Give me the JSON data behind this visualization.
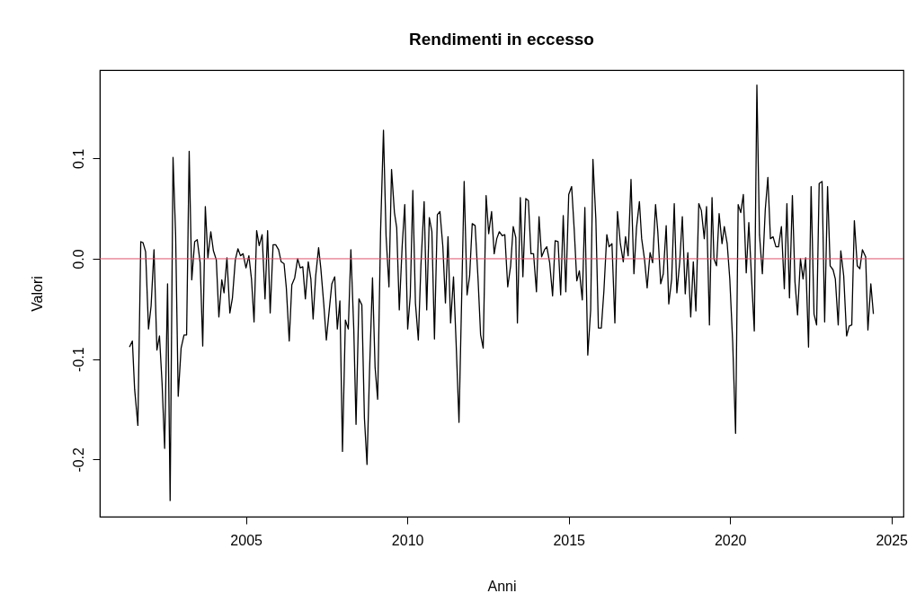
{
  "chart_data": {
    "type": "line",
    "title": "Rendimenti in eccesso",
    "xlabel": "Anni",
    "ylabel": "Valori",
    "x": [
      2001.39,
      2001.48,
      2001.55,
      2001.65,
      2001.74,
      2001.81,
      2001.89,
      2001.98,
      2002.06,
      2002.15,
      2002.24,
      2002.32,
      2002.4,
      2002.48,
      2002.57,
      2002.65,
      2002.74,
      2002.82,
      2002.9,
      2002.99,
      2003.08,
      2003.16,
      2003.24,
      2003.32,
      2003.41,
      2003.49,
      2003.58,
      2003.66,
      2003.74,
      2003.82,
      2003.91,
      2003.99,
      2004.08,
      2004.16,
      2004.25,
      2004.32,
      2004.41,
      2004.5,
      2004.58,
      2004.67,
      2004.75,
      2004.83,
      2004.91,
      2005.0,
      2005.09,
      2005.17,
      2005.25,
      2005.33,
      2005.41,
      2005.5,
      2005.59,
      2005.67,
      2005.75,
      2005.84,
      2005.92,
      2006.01,
      2006.09,
      2006.18,
      2006.25,
      2006.34,
      2006.42,
      2006.51,
      2006.6,
      2006.68,
      2006.76,
      2006.84,
      2006.93,
      2007.01,
      2007.08,
      2007.16,
      2007.25,
      2007.32,
      2007.41,
      2007.49,
      2007.58,
      2007.66,
      2007.75,
      2007.83,
      2007.91,
      2007.99,
      2008.08,
      2008.17,
      2008.25,
      2008.34,
      2008.41,
      2008.5,
      2008.59,
      2008.67,
      2008.75,
      2008.83,
      2008.92,
      2009.0,
      2009.08,
      2009.17,
      2009.26,
      2009.34,
      2009.43,
      2009.51,
      2009.6,
      2009.67,
      2009.75,
      2009.84,
      2009.92,
      2010.01,
      2010.09,
      2010.17,
      2010.25,
      2010.34,
      2010.42,
      2010.52,
      2010.6,
      2010.68,
      2010.76,
      2010.84,
      2010.93,
      2011.01,
      2011.1,
      2011.18,
      2011.26,
      2011.34,
      2011.43,
      2011.51,
      2011.6,
      2011.76,
      2011.85,
      2011.93,
      2012.01,
      2012.1,
      2012.19,
      2012.27,
      2012.35,
      2012.44,
      2012.52,
      2012.61,
      2012.69,
      2012.77,
      2012.85,
      2012.94,
      2013.02,
      2013.11,
      2013.2,
      2013.28,
      2013.36,
      2013.41,
      2013.5,
      2013.58,
      2013.67,
      2013.75,
      2013.83,
      2013.91,
      2014.0,
      2014.08,
      2014.16,
      2014.25,
      2014.32,
      2014.41,
      2014.5,
      2014.58,
      2014.67,
      2014.75,
      2014.83,
      2014.91,
      2015.0,
      2015.09,
      2015.17,
      2015.25,
      2015.33,
      2015.42,
      2015.5,
      2015.59,
      2015.68,
      2015.75,
      2015.84,
      2015.92,
      2016.01,
      2016.09,
      2016.18,
      2016.25,
      2016.34,
      2016.43,
      2016.51,
      2016.6,
      2016.69,
      2016.76,
      2016.84,
      2016.93,
      2017.02,
      2017.1,
      2017.19,
      2017.26,
      2017.35,
      2017.43,
      2017.52,
      2017.6,
      2017.69,
      2017.76,
      2017.85,
      2017.93,
      2018.02,
      2018.1,
      2018.19,
      2018.27,
      2018.35,
      2018.44,
      2018.52,
      2018.61,
      2018.69,
      2018.78,
      2018.86,
      2018.94,
      2019.03,
      2019.11,
      2019.2,
      2019.27,
      2019.36,
      2019.44,
      2019.5,
      2019.58,
      2019.66,
      2019.75,
      2019.82,
      2019.91,
      2019.99,
      2020.08,
      2020.17,
      2020.25,
      2020.33,
      2020.41,
      2020.5,
      2020.58,
      2020.67,
      2020.75,
      2020.83,
      2020.91,
      2021.0,
      2021.09,
      2021.17,
      2021.25,
      2021.33,
      2021.42,
      2021.5,
      2021.59,
      2021.68,
      2021.76,
      2021.84,
      2021.93,
      2022.01,
      2022.09,
      2022.18,
      2022.26,
      2022.34,
      2022.43,
      2022.51,
      2022.6,
      2022.68,
      2022.76,
      2022.85,
      2022.93,
      2023.02,
      2023.1,
      2023.19,
      2023.26,
      2023.35,
      2023.43,
      2023.52,
      2023.61,
      2023.69,
      2023.77,
      2023.85,
      2023.94,
      2024.02,
      2024.1,
      2024.2,
      2024.27,
      2024.36,
      2024.44
    ],
    "series": [
      {
        "color": "#000000",
        "values": [
          -0.088,
          -0.082,
          -0.13,
          -0.166,
          0.017,
          0.016,
          0.007,
          -0.07,
          -0.047,
          0.009,
          -0.091,
          -0.077,
          -0.124,
          -0.189,
          -0.025,
          -0.241,
          0.101,
          0.024,
          -0.137,
          -0.089,
          -0.076,
          -0.076,
          0.107,
          -0.021,
          0.017,
          0.019,
          -0.004,
          -0.087,
          0.052,
          0.001,
          0.027,
          0.008,
          -0.001,
          -0.058,
          -0.021,
          -0.034,
          0.001,
          -0.054,
          -0.039,
          -0.001,
          0.01,
          0.003,
          0.005,
          -0.009,
          0.003,
          -0.02,
          -0.063,
          0.028,
          0.013,
          0.024,
          -0.04,
          0.028,
          -0.054,
          0.014,
          0.014,
          0.009,
          -0.003,
          -0.005,
          -0.029,
          -0.082,
          -0.026,
          -0.019,
          0.0,
          -0.009,
          -0.008,
          -0.04,
          -0.003,
          -0.02,
          -0.06,
          -0.017,
          0.011,
          -0.01,
          -0.045,
          -0.081,
          -0.051,
          -0.025,
          -0.018,
          -0.07,
          -0.042,
          -0.192,
          -0.061,
          -0.07,
          0.009,
          -0.07,
          -0.165,
          -0.04,
          -0.046,
          -0.159,
          -0.205,
          -0.11,
          -0.019,
          -0.108,
          -0.14,
          0.027,
          0.128,
          0.023,
          -0.028,
          0.089,
          0.046,
          0.031,
          -0.051,
          0.013,
          0.054,
          -0.07,
          -0.037,
          0.068,
          -0.044,
          -0.081,
          -0.007,
          0.057,
          -0.051,
          0.041,
          0.027,
          -0.08,
          0.044,
          0.047,
          0.012,
          -0.044,
          0.022,
          -0.064,
          -0.018,
          -0.083,
          -0.163,
          0.077,
          -0.036,
          -0.017,
          0.035,
          0.033,
          -0.02,
          -0.076,
          -0.089,
          0.063,
          0.025,
          0.047,
          0.005,
          0.02,
          0.027,
          0.023,
          0.024,
          -0.028,
          -0.007,
          0.032,
          0.021,
          -0.064,
          0.061,
          -0.018,
          0.06,
          0.058,
          0.005,
          0.005,
          -0.033,
          0.042,
          0.002,
          0.009,
          0.012,
          -0.004,
          -0.037,
          0.018,
          0.017,
          -0.036,
          0.043,
          -0.033,
          0.064,
          0.072,
          0.029,
          -0.022,
          -0.012,
          -0.041,
          0.051,
          -0.096,
          -0.051,
          0.099,
          0.04,
          -0.069,
          -0.069,
          -0.032,
          0.024,
          0.012,
          0.015,
          -0.064,
          0.047,
          0.015,
          -0.003,
          0.022,
          0.003,
          0.079,
          -0.015,
          0.031,
          0.057,
          0.02,
          -0.001,
          -0.029,
          0.006,
          -0.004,
          0.054,
          0.027,
          -0.025,
          -0.015,
          0.033,
          -0.045,
          -0.02,
          0.055,
          -0.034,
          -0.003,
          0.042,
          -0.035,
          0.006,
          -0.058,
          -0.003,
          -0.052,
          0.055,
          0.048,
          0.02,
          0.052,
          -0.066,
          0.061,
          0.0,
          -0.007,
          0.045,
          0.015,
          0.032,
          0.015,
          -0.02,
          -0.083,
          -0.174,
          0.054,
          0.046,
          0.064,
          -0.014,
          0.036,
          -0.023,
          -0.072,
          0.173,
          0.024,
          -0.015,
          0.049,
          0.081,
          0.02,
          0.022,
          0.012,
          0.012,
          0.032,
          -0.03,
          0.055,
          -0.039,
          0.063,
          -0.023,
          -0.056,
          0.0,
          -0.02,
          0.001,
          -0.088,
          0.072,
          -0.055,
          -0.066,
          0.075,
          0.077,
          -0.063,
          0.072,
          -0.007,
          -0.011,
          -0.02,
          -0.066,
          0.008,
          -0.017,
          -0.077,
          -0.067,
          -0.066,
          0.038,
          -0.007,
          -0.01,
          0.009,
          0.002,
          -0.071,
          -0.025,
          -0.055
        ]
      }
    ],
    "xlim": [
      2000.47,
      2025.37
    ],
    "ylim": [
      -0.257,
      0.188
    ],
    "xticks": [
      2005,
      2010,
      2015,
      2020,
      2025
    ],
    "yticks": [
      -0.2,
      -0.1,
      {
        "value": 0,
        "label": "0.0"
      },
      0.1
    ],
    "ref_lines": [
      {
        "axis": "y",
        "value": 0,
        "color": "#df536b"
      }
    ]
  }
}
